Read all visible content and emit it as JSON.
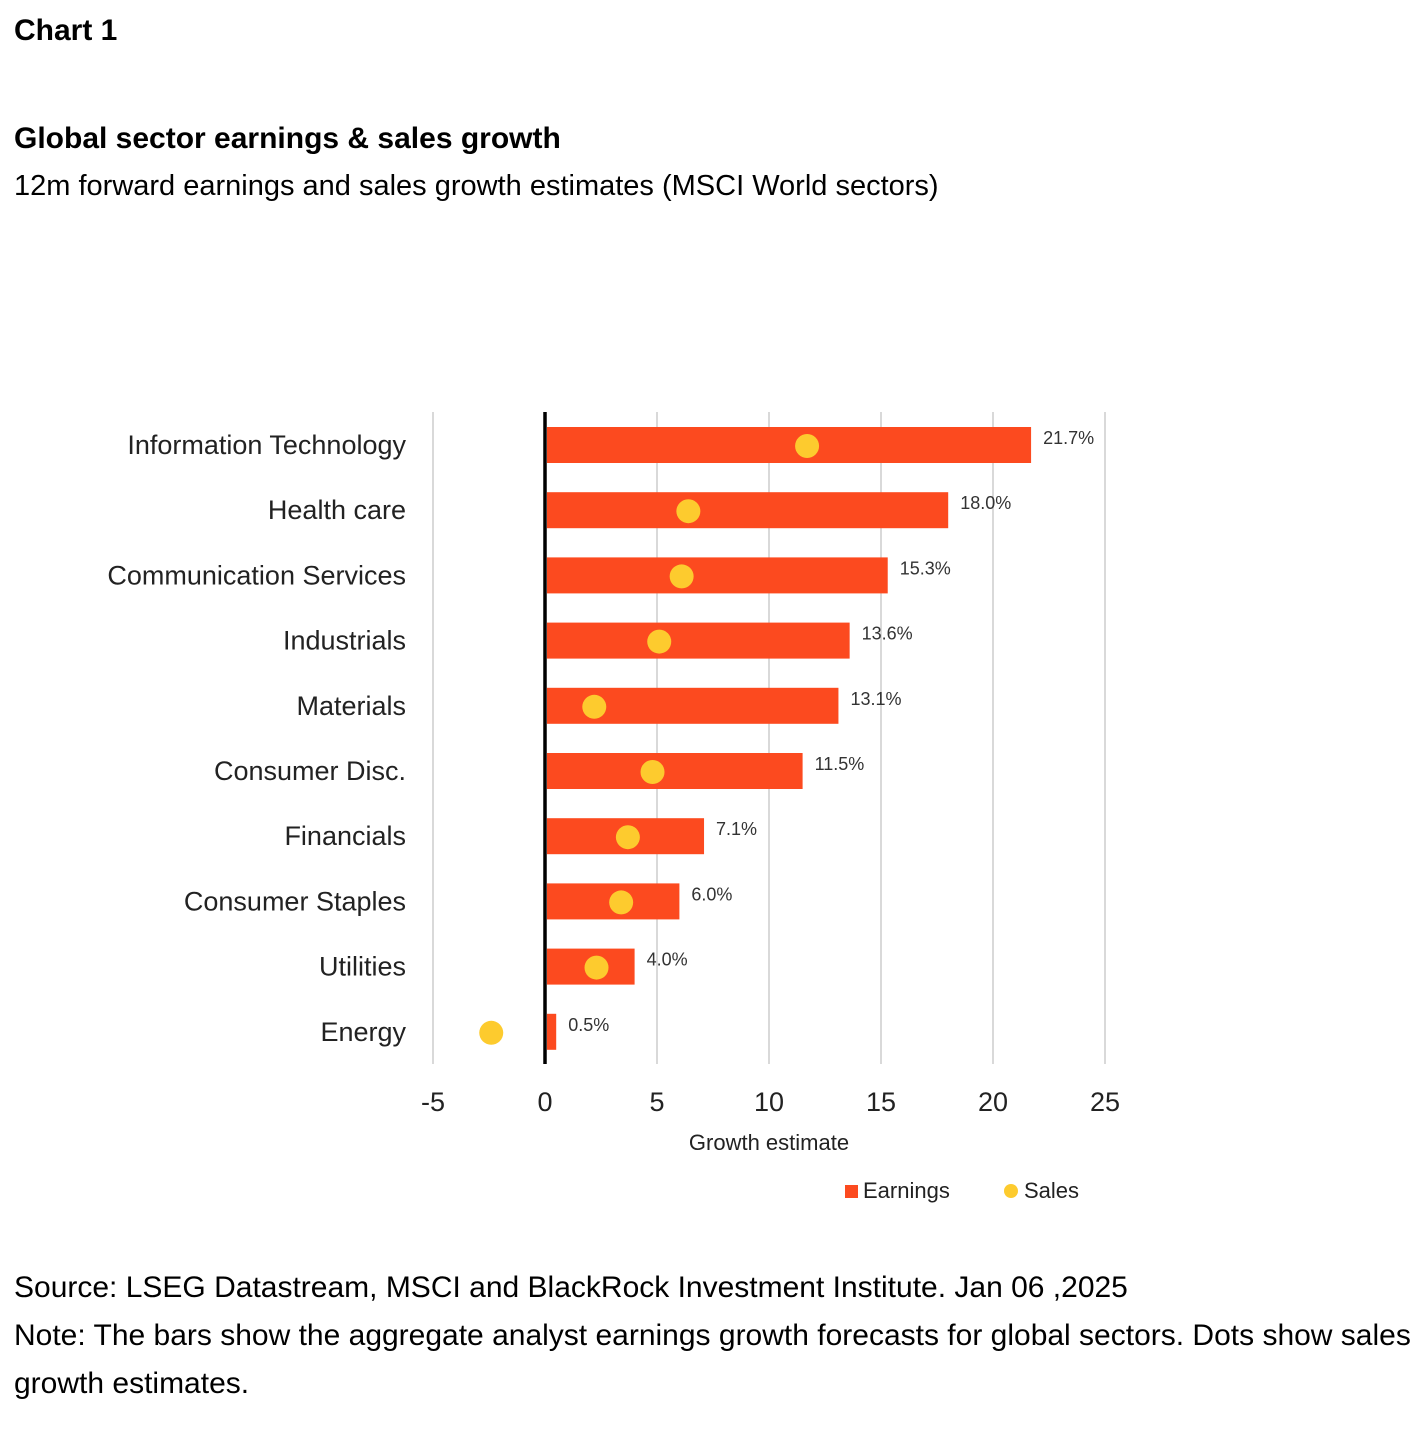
{
  "header": {
    "label": "Chart 1",
    "title": "Global sector earnings & sales growth",
    "subtitle": "12m forward earnings and sales growth estimates (MSCI World sectors)"
  },
  "colors": {
    "earnings": "#fc4a1f",
    "sales": "#fdcb2e",
    "grid": "#d9d9d9",
    "zero_axis": "#000000"
  },
  "chart_data": {
    "type": "bar",
    "orientation": "horizontal",
    "categories": [
      "Information Technology",
      "Health care",
      "Communication Services",
      "Industrials",
      "Materials",
      "Consumer Disc.",
      "Financials",
      "Consumer Staples",
      "Utilities",
      "Energy"
    ],
    "series": [
      {
        "name": "Earnings",
        "kind": "bar",
        "values": [
          21.7,
          18.0,
          15.3,
          13.6,
          13.1,
          11.5,
          7.1,
          6.0,
          4.0,
          0.5
        ]
      },
      {
        "name": "Sales",
        "kind": "dot",
        "values": [
          11.7,
          6.4,
          6.1,
          5.1,
          2.2,
          4.8,
          3.7,
          3.4,
          2.3,
          -2.4
        ]
      }
    ],
    "data_labels": [
      "21.7%",
      "18.0%",
      "15.3%",
      "13.6%",
      "13.1%",
      "11.5%",
      "7.1%",
      "6.0%",
      "4.0%",
      "0.5%"
    ],
    "xlabel": "Growth estimate",
    "ylabel": "",
    "xlim": [
      -5,
      25
    ],
    "xticks": [
      -5,
      0,
      5,
      10,
      15,
      20,
      25
    ],
    "xtick_labels": [
      "-5",
      "0",
      "5",
      "10",
      "15",
      "20",
      "25"
    ],
    "grid": true,
    "legend": {
      "position": "bottom-right",
      "entries": [
        "Earnings",
        "Sales"
      ]
    }
  },
  "footer": {
    "source": "Source: LSEG Datastream, MSCI and BlackRock Investment Institute. Jan 06 ,2025",
    "note": "Note: The bars show the aggregate analyst earnings growth forecasts for global sectors. Dots show sales growth estimates."
  }
}
